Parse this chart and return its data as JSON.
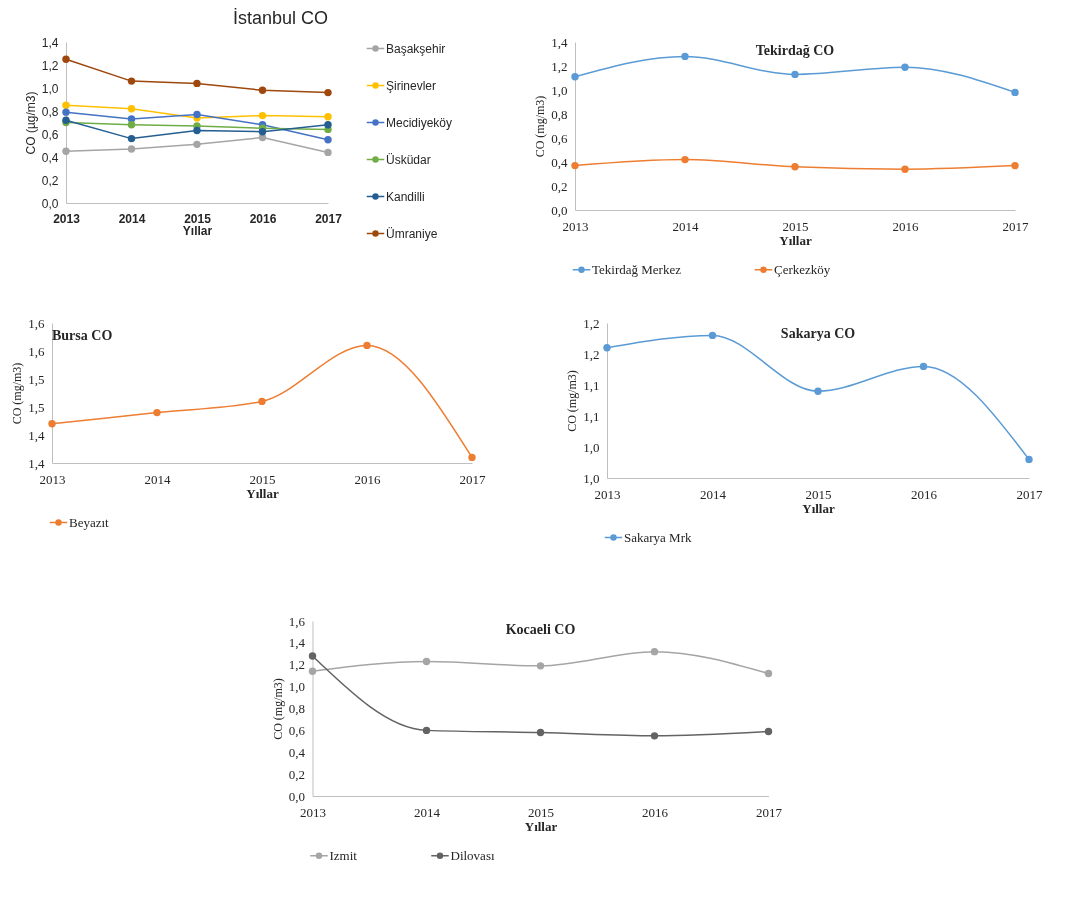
{
  "chart_data": [
    {
      "type": "line",
      "title": "İstanbul CO",
      "xlabel": "Yıllar",
      "ylabel": "CO (µg/m3)",
      "categories": [
        "2013",
        "2014",
        "2015",
        "2016",
        "2017"
      ],
      "series": [
        {
          "name": "Başakşehir",
          "color": "#a5a5a5",
          "values": [
            0.45,
            0.47,
            0.51,
            0.57,
            0.44
          ]
        },
        {
          "name": "Şirinevler",
          "color": "#ffc000",
          "values": [
            0.85,
            0.82,
            0.74,
            0.76,
            0.75
          ]
        },
        {
          "name": "Mecidiyeköy",
          "color": "#4472c4",
          "values": [
            0.79,
            0.73,
            0.77,
            0.68,
            0.55
          ]
        },
        {
          "name": "Üsküdar",
          "color": "#70ad47",
          "values": [
            0.7,
            0.68,
            0.67,
            0.65,
            0.64
          ]
        },
        {
          "name": "Kandilli",
          "color": "#255e91",
          "values": [
            0.72,
            0.56,
            0.63,
            0.62,
            0.68
          ]
        },
        {
          "name": "Ümraniye",
          "color": "#9e480e",
          "values": [
            1.25,
            1.06,
            1.04,
            0.98,
            0.96
          ]
        }
      ],
      "ylim": [
        0,
        1.4
      ],
      "yticks": [
        {
          "value": 0,
          "label": "0,0"
        },
        {
          "value": 0.2,
          "label": "0,2"
        },
        {
          "value": 0.4,
          "label": "0,4"
        },
        {
          "value": 0.6,
          "label": "0,6"
        },
        {
          "value": 0.8,
          "label": "0,8"
        },
        {
          "value": 1.0,
          "label": "1,0"
        },
        {
          "value": 1.2,
          "label": "1,2"
        },
        {
          "value": 1.4,
          "label": "1,4"
        }
      ],
      "legend": "right",
      "marker": "circle",
      "line_style": "solid"
    },
    {
      "type": "line",
      "title": "Tekirdağ CO",
      "xlabel": "Yıllar",
      "ylabel": "CO (mg/m3)",
      "categories": [
        "2013",
        "2014",
        "2015",
        "2016",
        "2017"
      ],
      "series": [
        {
          "name": "Tekirdağ Merkez",
          "color": "#5b9bd5",
          "values": [
            1.11,
            1.28,
            1.13,
            1.19,
            0.98
          ]
        },
        {
          "name": "Çerkezköy",
          "color": "#ed7d31",
          "values": [
            0.37,
            0.42,
            0.36,
            0.34,
            0.37
          ]
        }
      ],
      "ylim": [
        0,
        1.4
      ],
      "yticks": [
        {
          "value": 0,
          "label": "0,0"
        },
        {
          "value": 0.2,
          "label": "0,2"
        },
        {
          "value": 0.4,
          "label": "0,4"
        },
        {
          "value": 0.6,
          "label": "0,6"
        },
        {
          "value": 0.8,
          "label": "0,8"
        },
        {
          "value": 1.0,
          "label": "1,0"
        },
        {
          "value": 1.2,
          "label": "1,2"
        },
        {
          "value": 1.4,
          "label": "1,4"
        }
      ],
      "legend": "bottom",
      "marker": "circle",
      "line_style": "solid"
    },
    {
      "type": "line",
      "title": "Bursa CO",
      "xlabel": "Yıllar",
      "ylabel": "CO (mg/m3)",
      "categories": [
        "2013",
        "2014",
        "2015",
        "2016",
        "2017"
      ],
      "series": [
        {
          "name": "Beyazıt",
          "color": "#ed7d31",
          "values": [
            1.42,
            1.44,
            1.46,
            1.56,
            1.36
          ]
        }
      ],
      "ylim": [
        1.35,
        1.6
      ],
      "yticks": [
        {
          "value": 1.35,
          "label": "1,4"
        },
        {
          "value": 1.4,
          "label": "1,4"
        },
        {
          "value": 1.45,
          "label": "1,5"
        },
        {
          "value": 1.5,
          "label": "1,5"
        },
        {
          "value": 1.55,
          "label": "1,6"
        },
        {
          "value": 1.6,
          "label": "1,6"
        }
      ],
      "legend": "bottom",
      "marker": "circle",
      "line_style": "solid"
    },
    {
      "type": "line",
      "title": "Sakarya CO",
      "xlabel": "Yıllar",
      "ylabel": "CO (mg/m3)",
      "categories": [
        "2013",
        "2014",
        "2015",
        "2016",
        "2017"
      ],
      "series": [
        {
          "name": "Sakarya Mrk",
          "color": "#5b9bd5",
          "values": [
            1.16,
            1.18,
            1.09,
            1.13,
            0.98
          ]
        }
      ],
      "ylim": [
        0.95,
        1.2
      ],
      "yticks": [
        {
          "value": 0.95,
          "label": "1,0"
        },
        {
          "value": 1.0,
          "label": "1,0"
        },
        {
          "value": 1.05,
          "label": "1,1"
        },
        {
          "value": 1.1,
          "label": "1,1"
        },
        {
          "value": 1.15,
          "label": "1,2"
        },
        {
          "value": 1.2,
          "label": "1,2"
        }
      ],
      "legend": "bottom",
      "marker": "circle",
      "line_style": "solid"
    },
    {
      "type": "line",
      "title": "Kocaeli CO",
      "xlabel": "Yıllar",
      "ylabel": "CO (mg/m3)",
      "categories": [
        "2013",
        "2014",
        "2015",
        "2016",
        "2017"
      ],
      "series": [
        {
          "name": "Izmit",
          "color": "#a5a5a5",
          "values": [
            1.14,
            1.23,
            1.19,
            1.32,
            1.12
          ]
        },
        {
          "name": "Dilovası",
          "color": "#636363",
          "values": [
            1.28,
            0.6,
            0.58,
            0.55,
            0.59
          ]
        }
      ],
      "ylim": [
        0,
        1.6
      ],
      "yticks": [
        {
          "value": 0,
          "label": "0,0"
        },
        {
          "value": 0.2,
          "label": "0,2"
        },
        {
          "value": 0.4,
          "label": "0,4"
        },
        {
          "value": 0.6,
          "label": "0,6"
        },
        {
          "value": 0.8,
          "label": "0,8"
        },
        {
          "value": 1.0,
          "label": "1,0"
        },
        {
          "value": 1.2,
          "label": "1,2"
        },
        {
          "value": 1.4,
          "label": "1,4"
        },
        {
          "value": 1.6,
          "label": "1,6"
        }
      ],
      "legend": "bottom",
      "marker": "circle",
      "line_style": "solid"
    }
  ]
}
